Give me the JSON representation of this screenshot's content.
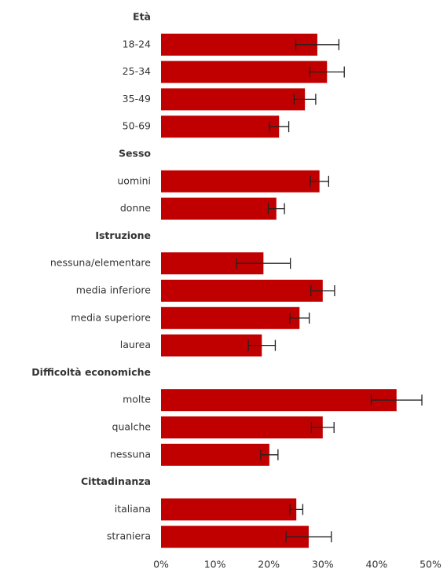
{
  "chart_data": {
    "type": "bar",
    "color": "#c00000",
    "xlim": [
      0,
      50
    ],
    "xticks": [
      {
        "value": 0,
        "label": "0%"
      },
      {
        "value": 10,
        "label": "10%"
      },
      {
        "value": 20,
        "label": "20%"
      },
      {
        "value": 30,
        "label": "30%"
      },
      {
        "value": 40,
        "label": "40%"
      },
      {
        "value": 50,
        "label": "50%"
      }
    ],
    "groups": [
      {
        "name": "Età",
        "categories": [
          "18-24",
          "25-34",
          "35-49",
          "50-69"
        ],
        "values": [
          29.0,
          30.8,
          26.7,
          21.9
        ],
        "errors": [
          4.0,
          3.2,
          2.0,
          1.8
        ]
      },
      {
        "name": "Sesso",
        "categories": [
          "uomini",
          "donne"
        ],
        "values": [
          29.4,
          21.4
        ],
        "errors": [
          1.7,
          1.5
        ]
      },
      {
        "name": "Istruzione",
        "categories": [
          "nessuna/elementare",
          "media inferiore",
          "media superiore",
          "laurea"
        ],
        "values": [
          19.0,
          30.0,
          25.7,
          18.7
        ],
        "errors": [
          5.0,
          2.2,
          1.8,
          2.5
        ]
      },
      {
        "name": "Difficoltà economiche",
        "categories": [
          "molte",
          "qualche",
          "nessuna"
        ],
        "values": [
          43.7,
          30.0,
          20.1
        ],
        "errors": [
          4.7,
          2.1,
          1.6
        ]
      },
      {
        "name": "Cittadinanza",
        "categories": [
          "italiana",
          "straniera"
        ],
        "values": [
          25.1,
          27.4
        ],
        "errors": [
          1.2,
          4.2
        ]
      }
    ]
  }
}
